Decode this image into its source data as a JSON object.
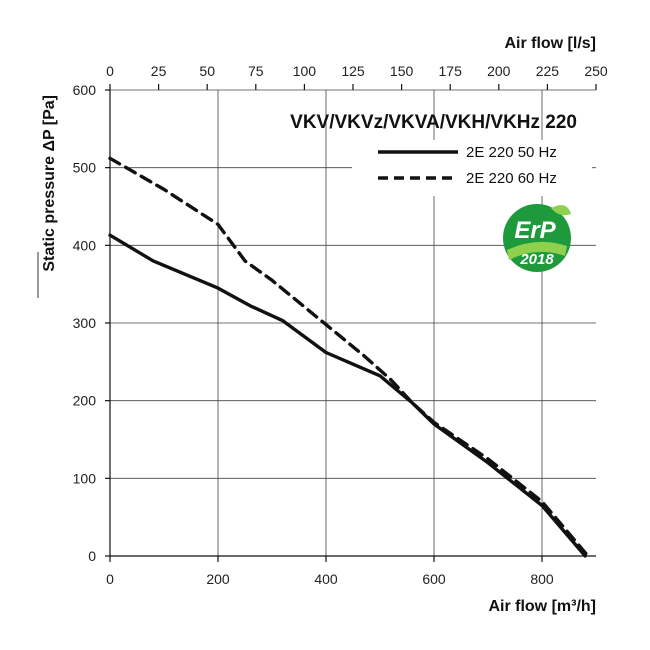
{
  "chart_data": {
    "type": "line",
    "title": "VKV/VKVz/VKVA/VKH/VKHz 220",
    "xlabel": "Air flow [m³/h]",
    "x2label": "Air flow [l/s]",
    "ylabel": "Static pressure ΔP [Pa]",
    "xlim": [
      0,
      900
    ],
    "ylim": [
      0,
      600
    ],
    "x2lim": [
      0,
      250
    ],
    "x_ticks": [
      "0",
      "200",
      "400",
      "600",
      "800"
    ],
    "x2_ticks": [
      "0",
      "25",
      "50",
      "75",
      "100",
      "125",
      "150",
      "175",
      "200",
      "225",
      "250"
    ],
    "y_ticks": [
      "0",
      "100",
      "200",
      "300",
      "400",
      "500",
      "600"
    ],
    "grid": true,
    "legend_position": "top-right",
    "series": [
      {
        "name": "2E 220 50 Hz",
        "style": "solid",
        "x": [
          0,
          80,
          200,
          260,
          320,
          400,
          450,
          500,
          560,
          600,
          700,
          800,
          880
        ],
        "y": [
          413,
          380,
          345,
          322,
          303,
          262,
          247,
          232,
          197,
          170,
          120,
          65,
          0
        ]
      },
      {
        "name": "2E 220 60 Hz",
        "style": "dashed",
        "x": [
          0,
          100,
          200,
          250,
          300,
          400,
          470,
          520,
          560,
          600,
          700,
          800,
          885
        ],
        "y": [
          512,
          472,
          427,
          380,
          355,
          298,
          258,
          227,
          197,
          172,
          125,
          70,
          0
        ]
      }
    ]
  },
  "badge": {
    "line1": "ErP",
    "line2": "2018",
    "color": "#1e9a3c",
    "accent": "#8fd14f"
  }
}
